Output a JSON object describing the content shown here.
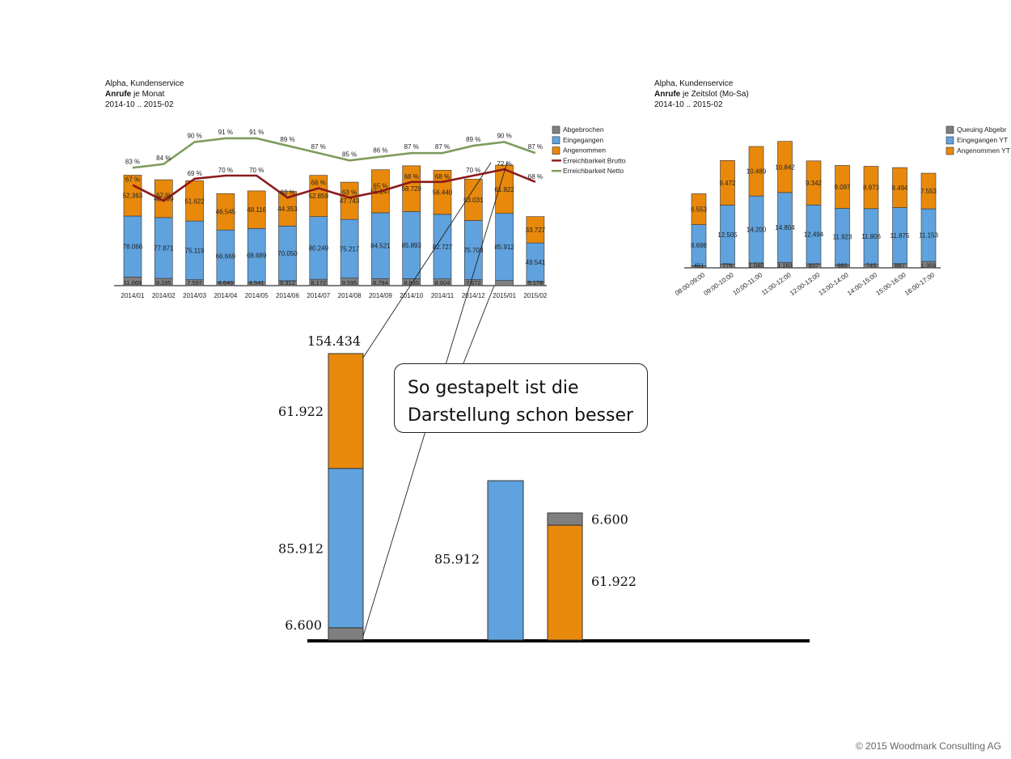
{
  "colors": {
    "abgebrochen": "#7f7f7f",
    "eingegangen": "#5fa2dd",
    "angenommen": "#e8890c",
    "brutto": "#8b1a1a",
    "netto": "#7e9c5e",
    "axis": "#000000"
  },
  "left_header": {
    "line1": "Alpha, Kundenservice",
    "line2_bold": "Anrufe",
    "line2_rest": " je Monat",
    "line3": "2014-10 .. 2015-02"
  },
  "right_header": {
    "line1": "Alpha, Kundenservice",
    "line2_bold": "Anrufe",
    "line2_rest": " je Zeitslot (Mo-Sa)",
    "line3": "2014-10 .. 2015-02"
  },
  "callout": {
    "line1": "So gestapelt ist die",
    "line2": "Darstellung schon besser"
  },
  "footer": "© 2015 Woodmark Consulting AG",
  "chart_data": [
    {
      "type": "bar",
      "stacked": true,
      "categories": [
        "2014/01",
        "2014/02",
        "2014/03",
        "2014/04",
        "2014/05",
        "2014/06",
        "2014/07",
        "2014/08",
        "2014/09",
        "2014/10",
        "2014/11",
        "2014/12",
        "2015/01",
        "2015/02"
      ],
      "series": [
        {
          "name": "Abgebrochen",
          "values": [
            11069,
            9295,
            7597,
            4646,
            4541,
            6312,
            8172,
            9595,
            8794,
            8895,
            8604,
            7672,
            6600,
            5178
          ],
          "labels": [
            "11.069",
            "9.295",
            "7.597",
            "4.646",
            "4.541",
            "6.312",
            "8.172",
            "9.595",
            "8.794",
            "8.895",
            "8.604",
            "7.672",
            "",
            "5.178"
          ]
        },
        {
          "name": "Eingegangen",
          "values": [
            78066,
            77871,
            75119,
            66669,
            68689,
            70050,
            80249,
            75217,
            84521,
            85893,
            82727,
            75708,
            85912,
            49541
          ],
          "labels": [
            "78.066",
            "77.871",
            "75.119",
            "66.669",
            "68.689",
            "70.050",
            "80.249",
            "75.217",
            "84.521",
            "85.893",
            "82.727",
            "75.708",
            "85.912",
            "49.541"
          ]
        },
        {
          "name": "Angenommen",
          "values": [
            52363,
            48499,
            51622,
            46545,
            48116,
            44353,
            52859,
            47743,
            55147,
            58729,
            56440,
            53031,
            61922,
            33727
          ],
          "labels": [
            "52.363",
            "48.499",
            "51.622",
            "46.545",
            "48.116",
            "44.353",
            "52.859",
            "47.743",
            "55.147",
            "58.729",
            "56.440",
            "53.031",
            "61.922",
            "33.727"
          ]
        },
        {
          "name": "Erreichbarkeit Brutto",
          "type": "line",
          "values": [
            67,
            62,
            69,
            70,
            70,
            63,
            66,
            63,
            65,
            68,
            68,
            70,
            72,
            68
          ],
          "labels": [
            "67 %",
            "62 %",
            "69 %",
            "70 %",
            "70 %",
            "63 %",
            "66 %",
            "63 %",
            "65 %",
            "68 %",
            "68 %",
            "70 %",
            "72 %",
            "68 %"
          ]
        },
        {
          "name": "Erreichbarkeit Netto",
          "type": "line",
          "values": [
            83,
            84,
            90,
            91,
            91,
            89,
            87,
            85,
            86,
            87,
            87,
            89,
            90,
            87
          ],
          "labels": [
            "83 %",
            "84 %",
            "90 %",
            "91 %",
            "91 %",
            "89 %",
            "87 %",
            "85 %",
            "86 %",
            "87 %",
            "87 %",
            "89 %",
            "90 %",
            "87 %"
          ]
        }
      ],
      "legend_position": "right"
    },
    {
      "type": "bar",
      "stacked": true,
      "categories": [
        "08:00-09:00",
        "09:00-10:00",
        "10:00-11:00",
        "11:00-12:00",
        "12:00-13:00",
        "13:00-14:00",
        "14:00-15:00",
        "15:00-16:00",
        "16:00-17:00"
      ],
      "series": [
        {
          "name": "Queuing Abgebr",
          "values": [
            451,
            776,
            1040,
            1163,
            837,
            685,
            745,
            887,
            1359
          ],
          "labels": [
            "451",
            "776",
            "1.040",
            "1.163",
            "837",
            "685",
            "745",
            "887",
            "1.359"
          ]
        },
        {
          "name": "Eingegangen YT",
          "values": [
            8698,
            12505,
            14200,
            14804,
            12494,
            11923,
            11806,
            11875,
            11153
          ],
          "labels": [
            "8.698",
            "12.505",
            "14.200",
            "14.804",
            "12.494",
            "11.923",
            "11.806",
            "11.875",
            "11.153"
          ]
        },
        {
          "name": "Angenommen YT",
          "values": [
            6553,
            9472,
            10489,
            10842,
            9342,
            9097,
            8973,
            8494,
            7553
          ],
          "labels": [
            "6.553",
            "9.472",
            "10.489",
            "10.842",
            "9.342",
            "9.097",
            "8.973",
            "8.494",
            "7.553"
          ]
        }
      ],
      "legend_position": "right"
    },
    {
      "type": "bar",
      "description_key": "zoom",
      "stacked_bar": {
        "values": {
          "abgebrochen": 6600,
          "eingegangen": 85912,
          "angenommen": 61922
        },
        "total": 154434,
        "labels": {
          "total": "154.434",
          "angenommen": "61.922",
          "eingegangen": "85.912",
          "abgebrochen": "6.600"
        }
      },
      "separate_bars": {
        "eingegangen": 85912,
        "angenommen": 61922,
        "abgebrochen": 6600,
        "labels": {
          "eingegangen": "85.912",
          "angenommen": "61.922",
          "abgebrochen": "6.600"
        }
      }
    }
  ]
}
